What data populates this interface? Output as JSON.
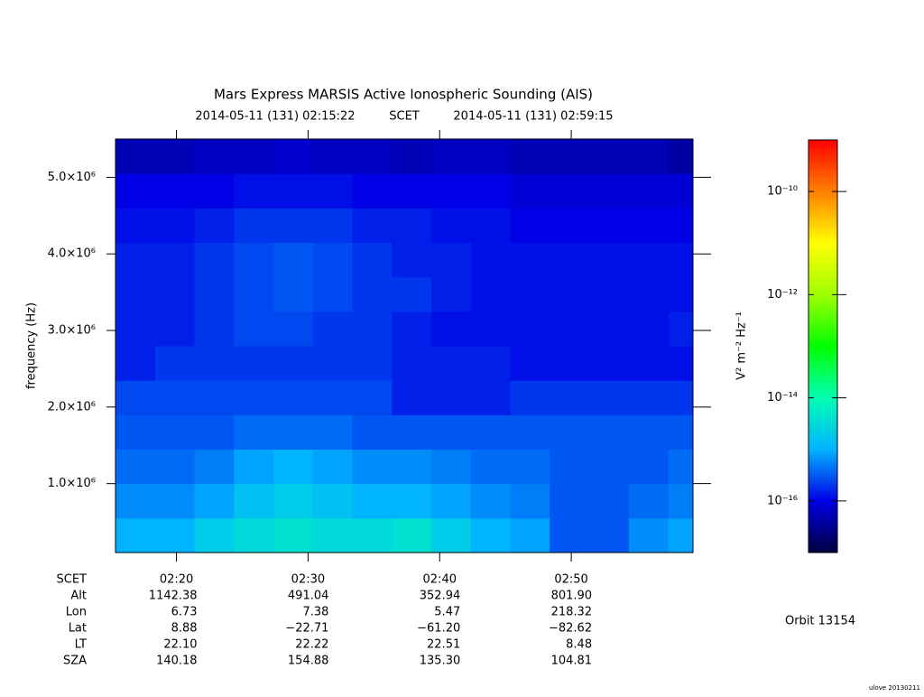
{
  "chart_data": {
    "type": "spectrogram",
    "title": "Mars Express MARSIS Active Ionospheric Sounding (AIS)",
    "start_time": "2014-05-11 (131) 02:15:22",
    "time_system": "SCET",
    "end_time": "2014-05-11 (131) 02:59:15",
    "ylabel": "frequency (Hz)",
    "colorbar_label": "V² m⁻² Hz⁻¹",
    "xlim": [
      "02:15:22",
      "02:59:15"
    ],
    "xticks": [
      {
        "value": "02:20:00",
        "label": "02:20"
      },
      {
        "value": "02:30:00",
        "label": "02:30"
      },
      {
        "value": "02:40:00",
        "label": "02:40"
      },
      {
        "value": "02:50:00",
        "label": "02:50"
      }
    ],
    "ylim": [
      100000,
      5500000
    ],
    "yticks": [
      {
        "value": 1000000,
        "label": "1.0×10⁶"
      },
      {
        "value": 2000000,
        "label": "2.0×10⁶"
      },
      {
        "value": 3000000,
        "label": "3.0×10⁶"
      },
      {
        "value": 4000000,
        "label": "4.0×10⁶"
      },
      {
        "value": 5000000,
        "label": "5.0×10⁶"
      }
    ],
    "zlim": [
      1e-17,
      1e-09
    ],
    "zscale": "log",
    "zticks": [
      {
        "value": 1e-10,
        "label": "10⁻¹⁰"
      },
      {
        "value": 1e-12,
        "label": "10⁻¹²"
      },
      {
        "value": 1e-14,
        "label": "10⁻¹⁴"
      },
      {
        "value": 1e-16,
        "label": "10⁻¹⁶"
      }
    ],
    "colormap": [
      "#000040",
      "#0000e6",
      "#00b4ff",
      "#00ffb4",
      "#00ff00",
      "#a0ff00",
      "#ffff00",
      "#ff8000",
      "#ff0000"
    ],
    "time_bins": [
      "02:15:22",
      "02:18:22",
      "02:21:22",
      "02:24:22",
      "02:27:22",
      "02:30:22",
      "02:33:22",
      "02:36:22",
      "02:39:22",
      "02:42:22",
      "02:45:22",
      "02:48:22",
      "02:51:22",
      "02:54:22",
      "02:57:22",
      "02:59:15"
    ],
    "frequency_bins": [
      100000,
      550000,
      1000000,
      1450000,
      1900000,
      2350000,
      2800000,
      3250000,
      3700000,
      4150000,
      4600000,
      5050000,
      5500000
    ],
    "z": [
      [
        1e-15,
        1e-15,
        2e-15,
        3e-15,
        4e-15,
        3e-15,
        3e-15,
        4e-15,
        2e-15,
        1e-15,
        8e-16,
        3e-16,
        3e-16,
        6e-16,
        8e-16
      ],
      [
        6e-16,
        6e-16,
        8e-16,
        1.5e-15,
        2e-15,
        1.5e-15,
        1e-15,
        1e-15,
        8e-16,
        6e-16,
        5e-16,
        3e-16,
        3e-16,
        4e-16,
        5e-16
      ],
      [
        4e-16,
        4e-16,
        5e-16,
        8e-16,
        1e-15,
        8e-16,
        6e-16,
        6e-16,
        5e-16,
        4e-16,
        4e-16,
        3e-16,
        3e-16,
        3e-16,
        4e-16
      ],
      [
        3e-16,
        3e-16,
        3e-16,
        4e-16,
        4e-16,
        4e-16,
        3e-16,
        3e-16,
        3e-16,
        3e-16,
        3e-16,
        3e-16,
        3e-16,
        3e-16,
        3e-16
      ],
      [
        2.5e-16,
        2.5e-16,
        2.5e-16,
        2.5e-16,
        2.5e-16,
        2.5e-16,
        2.5e-16,
        1.5e-16,
        1.5e-16,
        1.5e-16,
        2e-16,
        2e-16,
        2e-16,
        2e-16,
        2e-16
      ],
      [
        1.5e-16,
        2e-16,
        2e-16,
        2e-16,
        2e-16,
        2e-16,
        2e-16,
        1.5e-16,
        1.5e-16,
        1.5e-16,
        1.2e-16,
        1.2e-16,
        1.2e-16,
        1.2e-16,
        1.2e-16
      ],
      [
        1.5e-16,
        1.5e-16,
        2e-16,
        2.5e-16,
        2.5e-16,
        2e-16,
        2e-16,
        1.5e-16,
        1.2e-16,
        1.2e-16,
        1.2e-16,
        1.2e-16,
        1.2e-16,
        1.2e-16,
        1.5e-16
      ],
      [
        1.5e-16,
        1.5e-16,
        2e-16,
        2.5e-16,
        3e-16,
        2.5e-16,
        2e-16,
        2e-16,
        1.5e-16,
        1.2e-16,
        1.2e-16,
        1.2e-16,
        1.2e-16,
        1.2e-16,
        1.2e-16
      ],
      [
        1.5e-16,
        1.5e-16,
        2e-16,
        2.5e-16,
        3e-16,
        2.5e-16,
        2e-16,
        1.5e-16,
        1.5e-16,
        1.2e-16,
        1.2e-16,
        1.2e-16,
        1.2e-16,
        1.2e-16,
        1.2e-16
      ],
      [
        1.2e-16,
        1.2e-16,
        1.5e-16,
        2e-16,
        2e-16,
        2e-16,
        1.5e-16,
        1.5e-16,
        1.2e-16,
        1.2e-16,
        1e-16,
        1e-16,
        1e-16,
        1e-16,
        1e-16
      ],
      [
        1e-16,
        1e-16,
        1e-16,
        1.2e-16,
        1.2e-16,
        1.2e-16,
        1e-16,
        1e-16,
        1e-16,
        1e-16,
        8e-17,
        8e-17,
        8e-17,
        8e-17,
        8e-17
      ],
      [
        5e-17,
        5e-17,
        6e-17,
        6e-17,
        7e-17,
        6e-17,
        6e-17,
        5e-17,
        6e-17,
        6e-17,
        5e-17,
        5e-17,
        5e-17,
        5e-17,
        4e-17
      ]
    ],
    "ephemeris": [
      {
        "label": "Alt",
        "values": [
          "1142.38",
          "491.04",
          "352.94",
          "801.90"
        ]
      },
      {
        "label": "Lon",
        "values": [
          "6.73",
          "7.38",
          "5.47",
          "218.32"
        ]
      },
      {
        "label": "Lat",
        "values": [
          "8.88",
          "−22.71",
          "−61.20",
          "−82.62"
        ]
      },
      {
        "label": "LT",
        "values": [
          "22.10",
          "22.22",
          "22.51",
          "8.48"
        ]
      },
      {
        "label": "SZA",
        "values": [
          "140.18",
          "154.88",
          "135.30",
          "104.81"
        ]
      }
    ],
    "orbit": "Orbit 13154",
    "credit": "ulove 20130211"
  }
}
